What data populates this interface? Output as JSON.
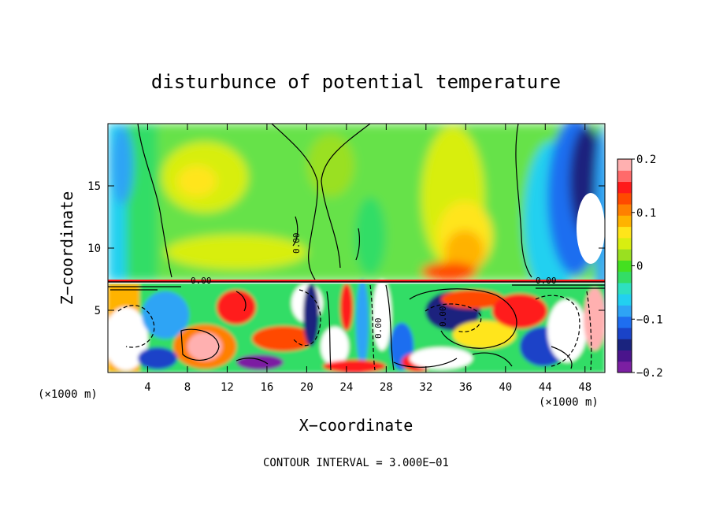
{
  "chart_data": {
    "type": "heatmap",
    "title": "disturbunce of potential temperature",
    "xlabel": "X−coordinate",
    "ylabel": "Z−coordinate",
    "x_unit": "(×1000 m)",
    "x_unit_right": "(×1000 m)",
    "xlim": [
      0,
      50
    ],
    "ylim": [
      0,
      20
    ],
    "xticks": [
      4,
      8,
      12,
      16,
      20,
      24,
      28,
      32,
      36,
      40,
      44,
      48
    ],
    "yticks": [
      5,
      10,
      15
    ],
    "colorbar": {
      "range": [
        -0.2,
        0.2
      ],
      "tick_values": [
        -0.2,
        -0.1,
        0,
        0.1,
        0.2
      ],
      "tick_labels": [
        "−0.2",
        "−0.1",
        "0",
        "0.1",
        "0.2"
      ],
      "colors": [
        "#7b1fa2",
        "#4a148c",
        "#1a237e",
        "#1a43c8",
        "#1e6ef0",
        "#2ea4f5",
        "#22d0f0",
        "#2ee0c0",
        "#33dd66",
        "#44e020",
        "#9ae020",
        "#d8ee10",
        "#ffe51a",
        "#ffb300",
        "#ff8000",
        "#ff4a00",
        "#ff1a1a",
        "#ff6a6a",
        "#ffb0b0"
      ]
    },
    "contour_labels": [
      "0.00",
      "0.00",
      "0.00",
      "0.00",
      "0.00"
    ],
    "footer": "CONTOUR INTERVAL = 3.000E−01"
  }
}
